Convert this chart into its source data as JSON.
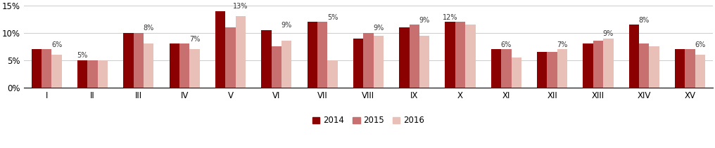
{
  "categories": [
    "I",
    "II",
    "III",
    "IV",
    "V",
    "VI",
    "VII",
    "VIII",
    "IX",
    "X",
    "XI",
    "XII",
    "XIII",
    "XIV",
    "XV"
  ],
  "series_2014": [
    7.0,
    5.0,
    10.0,
    8.0,
    14.0,
    10.5,
    12.0,
    9.0,
    11.0,
    12.0,
    7.0,
    6.5,
    8.0,
    11.5,
    7.0
  ],
  "series_2015": [
    7.0,
    5.0,
    10.0,
    8.0,
    11.0,
    7.5,
    12.0,
    10.0,
    11.5,
    12.0,
    7.0,
    6.5,
    8.5,
    8.0,
    7.0
  ],
  "series_2016": [
    6.0,
    5.0,
    8.0,
    7.0,
    13.0,
    8.5,
    5.0,
    9.5,
    9.5,
    11.5,
    5.5,
    7.0,
    9.0,
    7.5,
    6.0
  ],
  "annotations": [
    {
      "label": "6%",
      "bar": 2,
      "val": 6.0
    },
    {
      "label": "5%",
      "bar": 0,
      "val": 5.0
    },
    {
      "label": "8%",
      "bar": 2,
      "val": 8.0
    },
    {
      "label": "7%",
      "bar": 2,
      "val": 7.0
    },
    {
      "label": "13%",
      "bar": 2,
      "val": 13.0
    },
    {
      "label": "9%",
      "bar": 2,
      "val": 8.5
    },
    {
      "label": "5%",
      "bar": 2,
      "val": 5.0
    },
    {
      "label": "9%",
      "bar": 2,
      "val": 9.5
    },
    {
      "label": "9%",
      "bar": 2,
      "val": 9.5
    },
    {
      "label": "12%",
      "bar": 0,
      "val": 12.0
    },
    {
      "label": "6%",
      "bar": 1,
      "val": 7.0
    },
    {
      "label": "7%",
      "bar": 2,
      "val": 7.0
    },
    {
      "label": "9%",
      "bar": 2,
      "val": 9.0
    },
    {
      "label": "8%",
      "bar": 1,
      "val": 8.0
    },
    {
      "label": "6%",
      "bar": 2,
      "val": 6.0
    }
  ],
  "color_2014": "#8B0000",
  "color_2015": "#C87070",
  "color_2016": "#E8C0B8",
  "ylim": [
    0,
    15
  ],
  "yticks": [
    0,
    5,
    10,
    15
  ],
  "ytick_labels": [
    "0%",
    "5%",
    "10%",
    "15%"
  ],
  "legend_labels": [
    "2014",
    "2015",
    "2016"
  ],
  "bar_width": 0.22,
  "figsize": [
    10.16,
    2.11
  ],
  "dpi": 100,
  "bg_color": "#FFFFFF",
  "grid_color": "#CCCCCC",
  "annotation_fontsize": 7.0
}
